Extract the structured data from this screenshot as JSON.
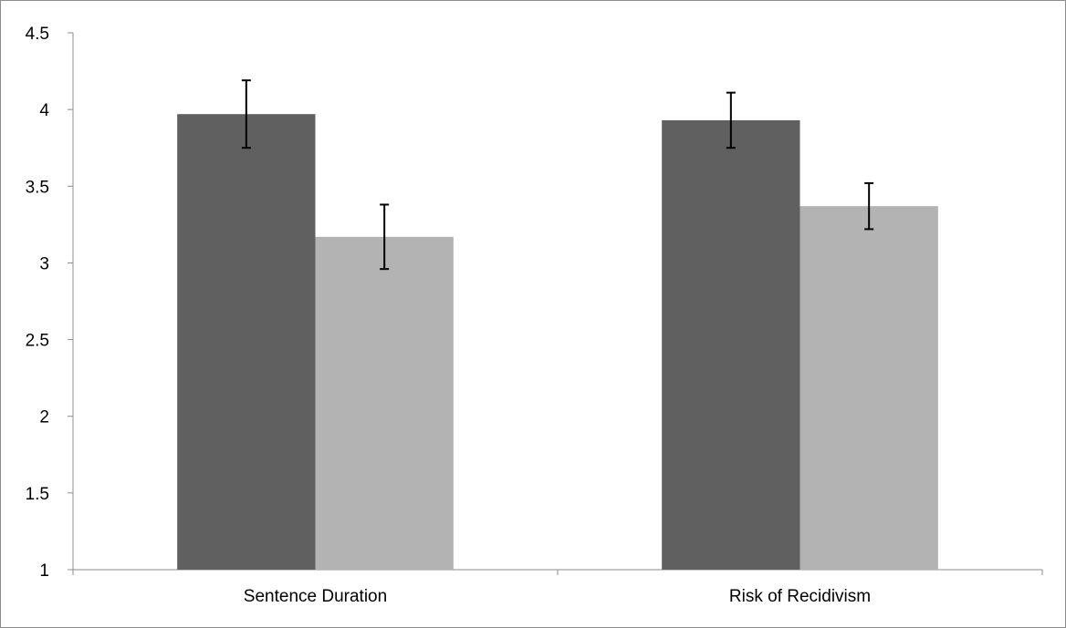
{
  "chart_data": {
    "type": "bar",
    "title": "",
    "xlabel": "",
    "ylabel": "",
    "ylim": [
      1,
      4.5
    ],
    "yticks": [
      1,
      1.5,
      2,
      2.5,
      3,
      3.5,
      4,
      4.5
    ],
    "ytick_labels": [
      "1",
      "1.5",
      "2",
      "2.5",
      "3",
      "3.5",
      "4",
      "4.5"
    ],
    "categories": [
      "Sentence Duration",
      "Risk of Recidivism"
    ],
    "grid": false,
    "legend": "none",
    "series": [
      {
        "color": "#606060",
        "values": [
          3.97,
          3.93
        ],
        "error_low": [
          3.75,
          3.75
        ],
        "error_high": [
          4.19,
          4.11
        ]
      },
      {
        "color": "#b3b3b3",
        "values": [
          3.17,
          3.37
        ],
        "error_low": [
          2.96,
          3.22
        ],
        "error_high": [
          3.38,
          3.52
        ]
      }
    ]
  }
}
